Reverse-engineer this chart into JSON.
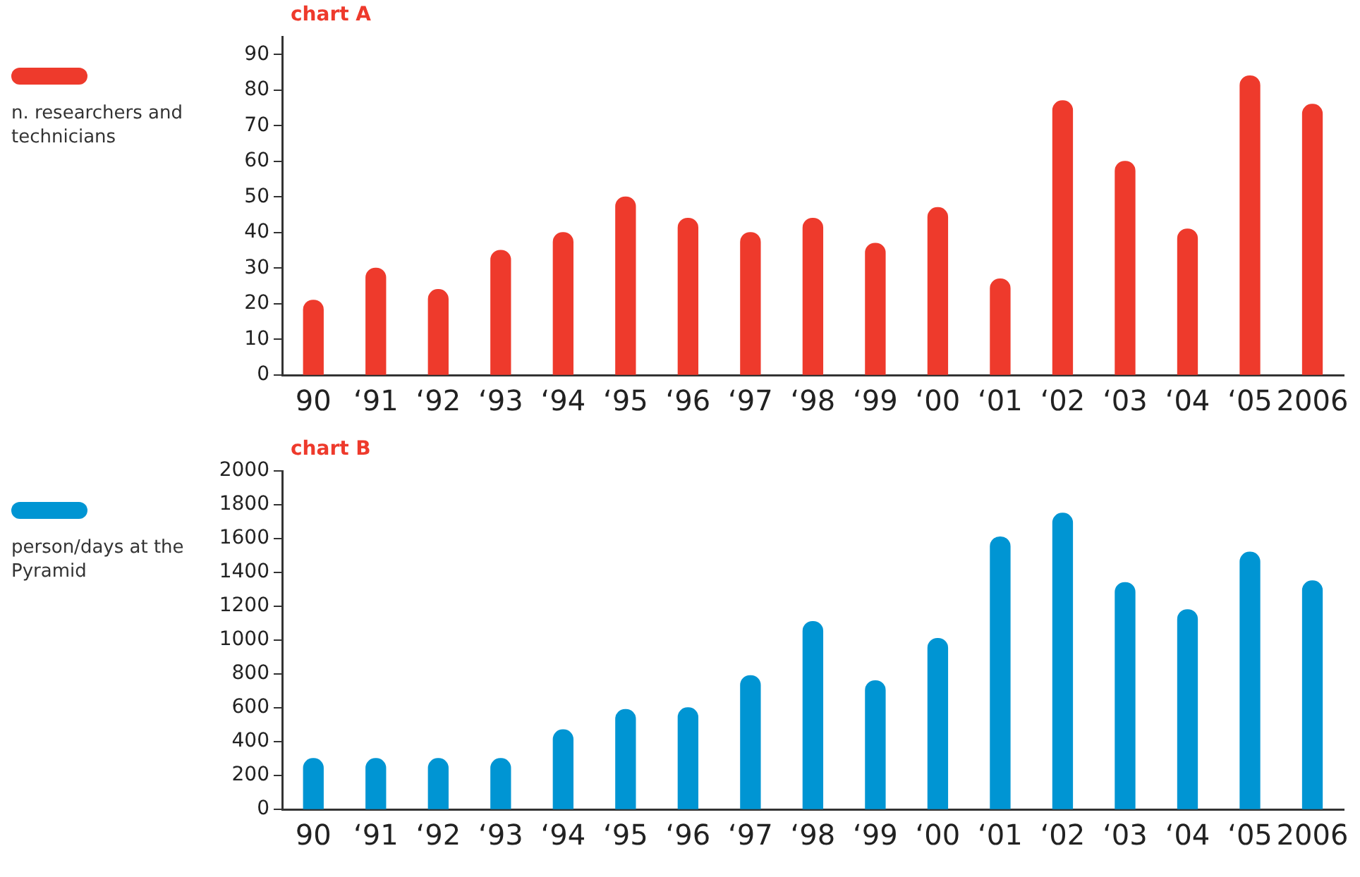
{
  "chart_data": [
    {
      "type": "bar",
      "title": "chart A",
      "categories": [
        "90",
        "‘91",
        "‘92",
        "‘93",
        "‘94",
        "‘95",
        "‘96",
        "‘97",
        "‘98",
        "‘99",
        "‘00",
        "‘01",
        "‘02",
        "‘03",
        "‘04",
        "‘05",
        "2006"
      ],
      "series": [
        {
          "name": "n. researchers and technicians",
          "color": "#ee3a2c",
          "values": [
            21,
            30,
            24,
            35,
            40,
            50,
            44,
            40,
            44,
            37,
            47,
            27,
            77,
            60,
            41,
            84,
            76
          ]
        }
      ],
      "ylim": [
        0,
        95
      ],
      "yticks": [
        0,
        10,
        20,
        30,
        40,
        50,
        60,
        70,
        80,
        90
      ],
      "grid": false,
      "legend": "left"
    },
    {
      "type": "bar",
      "title": "chart B",
      "categories": [
        "90",
        "‘91",
        "‘92",
        "‘93",
        "‘94",
        "‘95",
        "‘96",
        "‘97",
        "‘98",
        "‘99",
        "‘00",
        "‘01",
        "‘02",
        "‘03",
        "‘04",
        "‘05",
        "2006"
      ],
      "series": [
        {
          "name": "person/days at the Pyramid",
          "color": "#0095d3",
          "values": [
            300,
            300,
            300,
            300,
            470,
            590,
            600,
            790,
            1110,
            760,
            1010,
            1610,
            1750,
            1340,
            1180,
            1520,
            1350
          ]
        }
      ],
      "ylim": [
        0,
        2000
      ],
      "yticks": [
        0,
        200,
        400,
        600,
        800,
        1000,
        1200,
        1400,
        1600,
        1800,
        2000
      ],
      "grid": false,
      "legend": "left"
    }
  ]
}
